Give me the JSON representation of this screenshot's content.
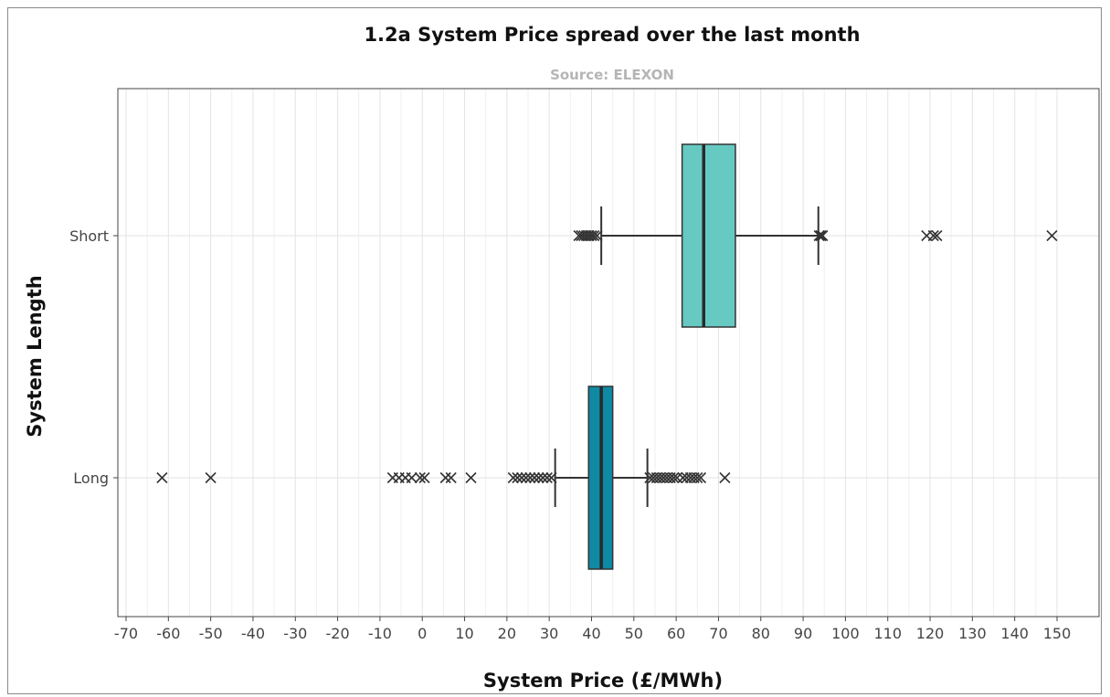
{
  "chart_data": {
    "type": "boxplot",
    "title": "1.2a System Price spread over the last month",
    "subtitle": "Source: ELEXON",
    "xlabel": "System Price (£/MWh)",
    "ylabel": "System Length",
    "xlim": [
      -72,
      155
    ],
    "x_ticks": [
      -70,
      -60,
      -50,
      -40,
      -30,
      -20,
      -10,
      0,
      10,
      20,
      30,
      40,
      50,
      60,
      70,
      80,
      90,
      100,
      110,
      120,
      130,
      140,
      150
    ],
    "orientation": "horizontal",
    "grid": "on",
    "series": [
      {
        "name": "Short",
        "color": "#66c9c2",
        "whisker_low": 42.3,
        "q1": 61.4,
        "median": 66.5,
        "q3": 74.0,
        "whisker_high": 93.6,
        "outliers": [
          37.0,
          37.6,
          38.2,
          38.8,
          39.4,
          40.0,
          40.6,
          41.3,
          93.8,
          94.2,
          94.6,
          119.2,
          120.8,
          121.6,
          148.8
        ]
      },
      {
        "name": "Long",
        "color": "#0f8aa3",
        "whisker_low": 31.4,
        "q1": 39.3,
        "median": 42.3,
        "q3": 45.0,
        "whisker_high": 53.2,
        "outliers": [
          -61.5,
          -50.0,
          -7.0,
          -5.5,
          -4.0,
          -2.5,
          -0.5,
          0.5,
          5.5,
          6.8,
          11.5,
          21.5,
          22.5,
          23.5,
          24.5,
          25.5,
          26.5,
          27.5,
          28.5,
          29.5,
          30.5,
          53.8,
          54.6,
          55.4,
          56.2,
          57.0,
          57.8,
          58.6,
          59.4,
          60.2,
          61.6,
          62.5,
          63.4,
          64.2,
          65.0,
          65.8,
          71.5
        ]
      }
    ]
  }
}
